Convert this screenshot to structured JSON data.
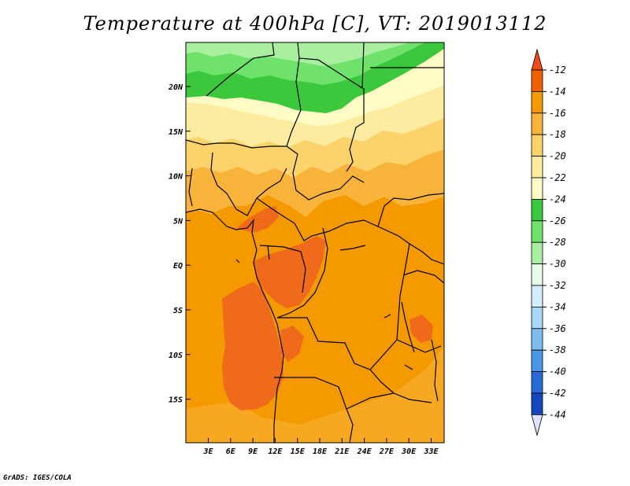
{
  "title": "Temperature at 400hPa [C], VT: 2019013112",
  "credit": "GrADS: IGES/COLA",
  "lat_labels": [
    "20N",
    "15N",
    "10N",
    "5N",
    "EQ",
    "5S",
    "10S",
    "15S"
  ],
  "lon_labels": [
    "3E",
    "6E",
    "9E",
    "12E",
    "15E",
    "18E",
    "21E",
    "24E",
    "27E",
    "30E",
    "33E"
  ],
  "colorbar": {
    "labels": [
      "-12",
      "-14",
      "-16",
      "-18",
      "-20",
      "-22",
      "-24",
      "-26",
      "-28",
      "-30",
      "-32",
      "-34",
      "-36",
      "-38",
      "-40",
      "-42",
      "-44"
    ],
    "colors": [
      "#f06000",
      "#f49a00",
      "#f8b43a",
      "#fbd36a",
      "#fdeca0",
      "#fffbc4",
      "#3cc83c",
      "#6ee26a",
      "#a8f0a0",
      "#e6fae6",
      "#d0eeff",
      "#a8d8f8",
      "#7cbcf0",
      "#4c98e8",
      "#2868d8",
      "#1446c0",
      "#0a2aa0",
      "#0a1470"
    ],
    "top_arrow_color": "#f04a1a",
    "bottom_arrow_color": "#dde2ff"
  },
  "field_colors": {
    "ocean_dark": "#f06a1c",
    "main": "#f49a00",
    "band_16": "#f8b43a",
    "band_18": "#fbd36a",
    "band_20": "#fdeca0",
    "band_22": "#fffbc4",
    "band_24": "#3cc83c",
    "band_26": "#6ee26a",
    "band_28": "#a8f0a0"
  }
}
